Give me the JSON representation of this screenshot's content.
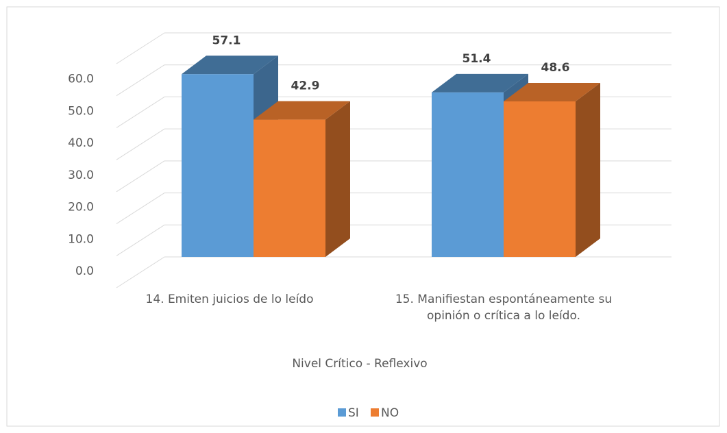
{
  "chart_data": {
    "type": "bar3d",
    "categories": [
      "14.  Emiten juicios de lo leído",
      "15. Manifiestan espontáneamente su opinión o crítica a lo leído."
    ],
    "series": [
      {
        "name": "SI",
        "color": "#5b9bd5",
        "values": [
          57.1,
          51.4
        ]
      },
      {
        "name": "NO",
        "color": "#ed7d31",
        "values": [
          42.9,
          48.6
        ]
      }
    ],
    "x_label": "Nivel Crítico - Reflexivo",
    "ylim": [
      0,
      70
    ],
    "yticks": [
      {
        "value": 0,
        "label": "0.0"
      },
      {
        "value": 10,
        "label": "10.0"
      },
      {
        "value": 20,
        "label": "20.0"
      },
      {
        "value": 30,
        "label": "30.0"
      },
      {
        "value": 40,
        "label": "40.0"
      },
      {
        "value": 50,
        "label": "50.0"
      },
      {
        "value": 60,
        "label": "60.0"
      }
    ],
    "grid": true,
    "legend": "bottom"
  }
}
